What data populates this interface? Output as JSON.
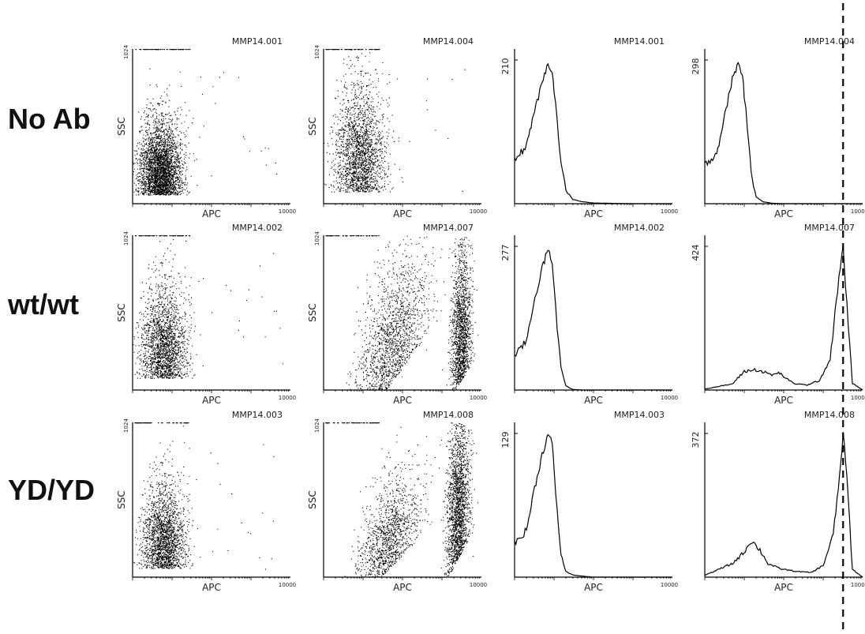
{
  "row_labels": [
    "No Ab",
    "wt/wt",
    "YD/YD"
  ],
  "ylabel": "SSC",
  "xlabel": "APC",
  "dot_ymax_label": "1024",
  "x_max_label": "10000",
  "colors": {
    "ink": "#000000",
    "background": "#ffffff"
  },
  "chart_data": [
    {
      "type": "scatter",
      "title": "MMP14.001",
      "xlabel": "APC",
      "ylabel": "SSC",
      "row": "No Ab",
      "x_scale": "log",
      "xlim": [
        1,
        10000
      ],
      "ylim": [
        0,
        1024
      ],
      "populations": [
        {
          "x_center": 5,
          "x_spread": 0.26,
          "y_mode": 60,
          "y_spread": 380,
          "share": 1.0
        }
      ]
    },
    {
      "type": "scatter",
      "title": "MMP14.004",
      "xlabel": "APC",
      "ylabel": "SSC",
      "row": "No Ab",
      "x_scale": "log",
      "xlim": [
        1,
        10000
      ],
      "ylim": [
        0,
        1024
      ],
      "populations": [
        {
          "x_center": 8,
          "x_spread": 0.3,
          "y_mode": 80,
          "y_spread": 560,
          "share": 1.0
        }
      ]
    },
    {
      "type": "line",
      "title": "MMP14.001",
      "xlabel": "APC",
      "row": "No Ab",
      "x_scale": "log",
      "xlim": [
        1,
        10000
      ],
      "ymax_label": "210",
      "x": [
        1,
        2,
        3,
        5,
        7,
        9,
        10,
        12,
        15,
        20,
        30,
        50,
        100,
        1000,
        10000
      ],
      "y": [
        62,
        85,
        130,
        175,
        205,
        196,
        165,
        120,
        60,
        20,
        6,
        3,
        1,
        0,
        0
      ]
    },
    {
      "type": "line",
      "title": "MMP14.004",
      "xlabel": "APC",
      "row": "No Ab",
      "x_scale": "log",
      "xlim": [
        1,
        10000
      ],
      "ymax_label": "298",
      "x": [
        1,
        2,
        3,
        5,
        7,
        9,
        10,
        12,
        15,
        20,
        30,
        50,
        100,
        1000,
        10000
      ],
      "y": [
        80,
        105,
        170,
        260,
        290,
        270,
        225,
        160,
        60,
        15,
        4,
        1,
        0,
        0,
        0
      ]
    },
    {
      "type": "scatter",
      "title": "MMP14.002",
      "xlabel": "APC",
      "ylabel": "SSC",
      "row": "wt/wt",
      "x_scale": "log",
      "xlim": [
        1,
        10000
      ],
      "ylim": [
        0,
        1024
      ],
      "populations": [
        {
          "x_center": 6,
          "x_spread": 0.28,
          "y_mode": 80,
          "y_spread": 480,
          "share": 1.0
        }
      ]
    },
    {
      "type": "scatter",
      "title": "MMP14.007",
      "xlabel": "APC",
      "ylabel": "SSC",
      "row": "wt/wt",
      "x_scale": "log",
      "xlim": [
        1,
        10000
      ],
      "ylim": [
        0,
        1024
      ],
      "populations": [
        {
          "x_center": 50,
          "x_spread": 0.45,
          "y_mode": 40,
          "y_spread": 600,
          "share": 0.5
        },
        {
          "x_center": 3000,
          "x_spread": 0.12,
          "y_mode": 60,
          "y_spread": 720,
          "share": 0.5
        }
      ]
    },
    {
      "type": "line",
      "title": "MMP14.002",
      "xlabel": "APC",
      "row": "wt/wt",
      "x_scale": "log",
      "xlim": [
        1,
        10000
      ],
      "ymax_label": "277",
      "x": [
        1,
        2,
        3,
        5,
        7,
        9,
        10,
        12,
        15,
        20,
        30,
        50,
        100,
        1000,
        10000
      ],
      "y": [
        65,
        95,
        165,
        235,
        270,
        250,
        195,
        120,
        45,
        8,
        1,
        0,
        0,
        0,
        0
      ]
    },
    {
      "type": "line",
      "title": "MMP14.007",
      "xlabel": "APC",
      "row": "wt/wt",
      "x_scale": "log",
      "xlim": [
        1,
        10000
      ],
      "ymax_label": "424",
      "x": [
        1,
        5,
        10,
        20,
        50,
        80,
        120,
        200,
        400,
        800,
        1500,
        2500,
        3200,
        4000,
        5500,
        10000
      ],
      "y": [
        3,
        18,
        55,
        60,
        45,
        50,
        32,
        18,
        15,
        28,
        90,
        330,
        420,
        250,
        20,
        0
      ]
    },
    {
      "type": "scatter",
      "title": "MMP14.003",
      "xlabel": "APC",
      "ylabel": "SSC",
      "row": "YD/YD",
      "x_scale": "log",
      "xlim": [
        1,
        10000
      ],
      "ylim": [
        0,
        1024
      ],
      "populations": [
        {
          "x_center": 6,
          "x_spread": 0.26,
          "y_mode": 60,
          "y_spread": 440,
          "share": 1.0
        }
      ]
    },
    {
      "type": "scatter",
      "title": "MMP14.008",
      "xlabel": "APC",
      "ylabel": "SSC",
      "row": "YD/YD",
      "x_scale": "log",
      "xlim": [
        1,
        10000
      ],
      "ylim": [
        0,
        1024
      ],
      "populations": [
        {
          "x_center": 40,
          "x_spread": 0.4,
          "y_mode": 40,
          "y_spread": 450,
          "share": 0.4
        },
        {
          "x_center": 2500,
          "x_spread": 0.14,
          "y_mode": 120,
          "y_spread": 800,
          "share": 0.6
        }
      ]
    },
    {
      "type": "line",
      "title": "MMP14.003",
      "xlabel": "APC",
      "row": "YD/YD",
      "x_scale": "log",
      "xlim": [
        1,
        10000
      ],
      "ymax_label": "129",
      "x": [
        1,
        2,
        3,
        5,
        7,
        9,
        10,
        12,
        15,
        20,
        30,
        50,
        100,
        1000,
        10000
      ],
      "y": [
        30,
        42,
        75,
        110,
        128,
        120,
        95,
        60,
        20,
        5,
        2,
        1,
        0,
        0,
        0
      ]
    },
    {
      "type": "line",
      "title": "MMP14.008",
      "xlabel": "APC",
      "row": "YD/YD",
      "x_scale": "log",
      "xlim": [
        1,
        10000
      ],
      "ymax_label": "372",
      "x": [
        1,
        5,
        10,
        15,
        25,
        40,
        80,
        200,
        500,
        1000,
        1800,
        2600,
        3200,
        4000,
        5500,
        10000
      ],
      "y": [
        5,
        35,
        65,
        95,
        70,
        35,
        22,
        15,
        12,
        30,
        110,
        260,
        370,
        260,
        20,
        0
      ]
    }
  ],
  "reference_line": {
    "style": "dashed",
    "x_value": 3200,
    "x_axis": "APC"
  }
}
